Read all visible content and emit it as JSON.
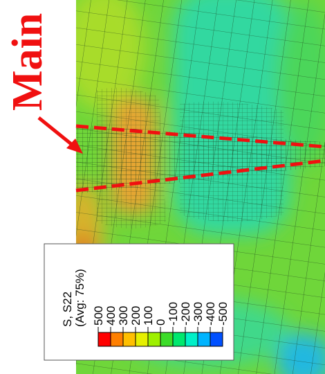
{
  "annotation": "Main",
  "legend": {
    "title": "S, S22",
    "subtitle": "(Avg: 75%)",
    "labels": [
      500,
      400,
      300,
      200,
      100,
      0,
      -100,
      -200,
      -300,
      -400,
      -500
    ],
    "colors": [
      "#ff0000",
      "#ff7f00",
      "#ffbf00",
      "#e6f000",
      "#9ef000",
      "#3cdc28",
      "#00e86e",
      "#00f0c8",
      "#00b4ff",
      "#0050ff",
      "#0000ff"
    ]
  }
}
